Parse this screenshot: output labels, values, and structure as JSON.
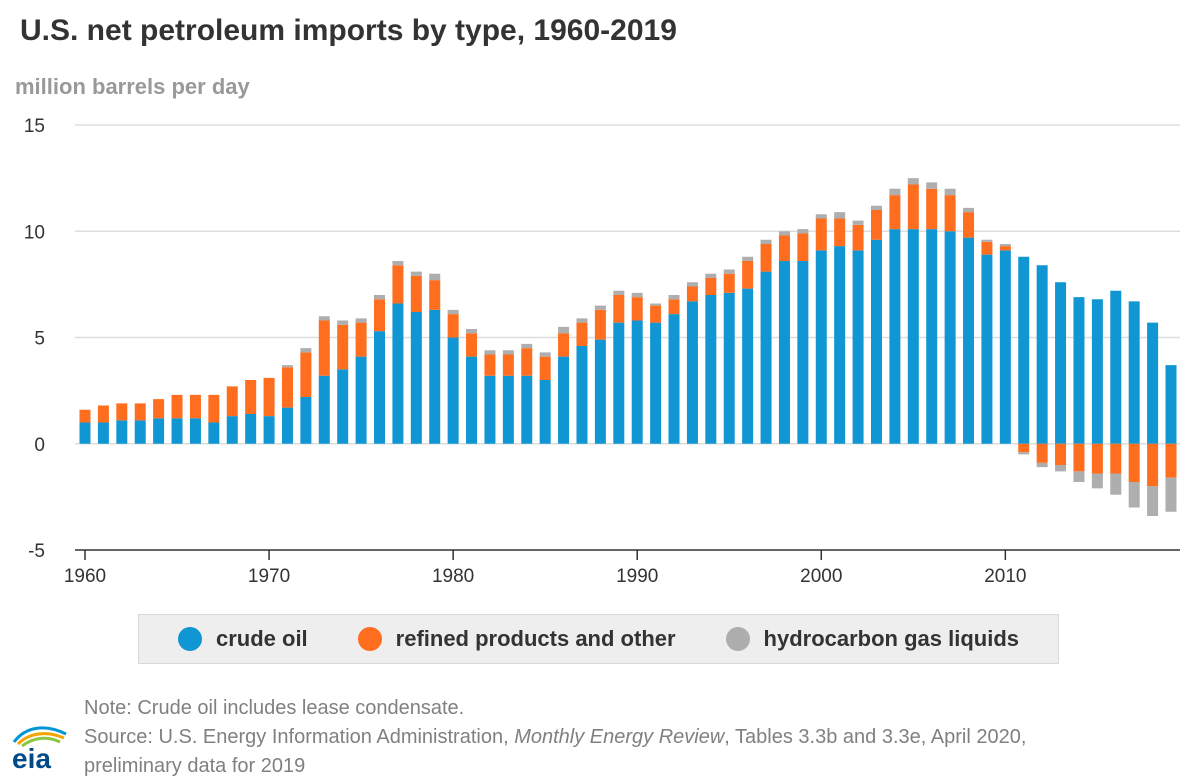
{
  "colors": {
    "crude_oil": "#1196d4",
    "refined_products": "#ff6d1f",
    "hgl": "#aeaeae",
    "grid": "#dddddd",
    "axis": "#333333"
  },
  "chart_data": {
    "type": "bar",
    "stacked": true,
    "title": "U.S. net petroleum imports by type, 1960-2019",
    "ylabel": "million barrels per day",
    "xlabel": "",
    "ylim": [
      -5,
      15
    ],
    "yticks": [
      15,
      10,
      5,
      0,
      -5
    ],
    "xticks": [
      1960,
      1970,
      1980,
      1990,
      2000,
      2010
    ],
    "categories": [
      1960,
      1961,
      1962,
      1963,
      1964,
      1965,
      1966,
      1967,
      1968,
      1969,
      1970,
      1971,
      1972,
      1973,
      1974,
      1975,
      1976,
      1977,
      1978,
      1979,
      1980,
      1981,
      1982,
      1983,
      1984,
      1985,
      1986,
      1987,
      1988,
      1989,
      1990,
      1991,
      1992,
      1993,
      1994,
      1995,
      1996,
      1997,
      1998,
      1999,
      2000,
      2001,
      2002,
      2003,
      2004,
      2005,
      2006,
      2007,
      2008,
      2009,
      2010,
      2011,
      2012,
      2013,
      2014,
      2015,
      2016,
      2017,
      2018,
      2019
    ],
    "series": [
      {
        "name": "crude oil",
        "values": [
          1.0,
          1.0,
          1.1,
          1.1,
          1.2,
          1.2,
          1.2,
          1.0,
          1.3,
          1.4,
          1.3,
          1.7,
          2.2,
          3.2,
          3.5,
          4.1,
          5.3,
          6.6,
          6.2,
          6.3,
          5.0,
          4.1,
          3.2,
          3.2,
          3.2,
          3.0,
          4.1,
          4.6,
          4.9,
          5.7,
          5.8,
          5.7,
          6.1,
          6.7,
          7.0,
          7.1,
          7.3,
          8.1,
          8.6,
          8.6,
          9.1,
          9.3,
          9.1,
          9.6,
          10.1,
          10.1,
          10.1,
          10.0,
          9.7,
          8.9,
          9.1,
          8.8,
          8.4,
          7.6,
          6.9,
          6.8,
          7.2,
          6.7,
          5.7,
          3.7
        ]
      },
      {
        "name": "refined products and other",
        "values": [
          0.6,
          0.8,
          0.8,
          0.8,
          0.9,
          1.1,
          1.1,
          1.3,
          1.4,
          1.6,
          1.8,
          1.9,
          2.1,
          2.6,
          2.1,
          1.6,
          1.5,
          1.8,
          1.7,
          1.4,
          1.1,
          1.1,
          1.0,
          1.0,
          1.3,
          1.1,
          1.1,
          1.1,
          1.4,
          1.3,
          1.1,
          0.8,
          0.7,
          0.7,
          0.8,
          0.9,
          1.3,
          1.3,
          1.2,
          1.3,
          1.5,
          1.3,
          1.2,
          1.4,
          1.6,
          2.1,
          1.9,
          1.7,
          1.2,
          0.6,
          0.2,
          -0.4,
          -0.9,
          -1.0,
          -1.3,
          -1.4,
          -1.4,
          -1.8,
          -2.0,
          -1.6
        ]
      },
      {
        "name": "hydrocarbon gas liquids",
        "values": [
          0.0,
          0.0,
          0.0,
          0.0,
          0.0,
          0.0,
          0.0,
          0.0,
          0.0,
          0.0,
          0.0,
          0.1,
          0.2,
          0.2,
          0.2,
          0.2,
          0.2,
          0.2,
          0.2,
          0.3,
          0.2,
          0.2,
          0.2,
          0.2,
          0.2,
          0.2,
          0.3,
          0.2,
          0.2,
          0.2,
          0.2,
          0.1,
          0.2,
          0.2,
          0.2,
          0.2,
          0.2,
          0.2,
          0.2,
          0.2,
          0.2,
          0.3,
          0.2,
          0.2,
          0.3,
          0.3,
          0.3,
          0.3,
          0.2,
          0.1,
          0.1,
          -0.1,
          -0.2,
          -0.3,
          -0.5,
          -0.7,
          -1.0,
          -1.2,
          -1.4,
          -1.6
        ]
      }
    ],
    "legend": [
      "crude oil",
      "refined products and other",
      "hydrocarbon gas liquids"
    ],
    "legend_position": "bottom"
  },
  "header": {
    "title": "U.S. net petroleum imports by type, 1960-2019",
    "unit": "million barrels per day"
  },
  "legend": {
    "crude": "crude oil",
    "refined": "refined products and other",
    "hgl": "hydrocarbon gas liquids"
  },
  "notes": {
    "note": "Note: Crude oil includes lease condensate.",
    "source_prefix": "Source: U.S. Energy Information Administration, ",
    "source_title": "Monthly Energy Review",
    "source_suffix": ", Tables 3.3b and 3.3e, April 2020,",
    "source_line2": "preliminary data for 2019"
  },
  "logo": {
    "text": "eia"
  }
}
